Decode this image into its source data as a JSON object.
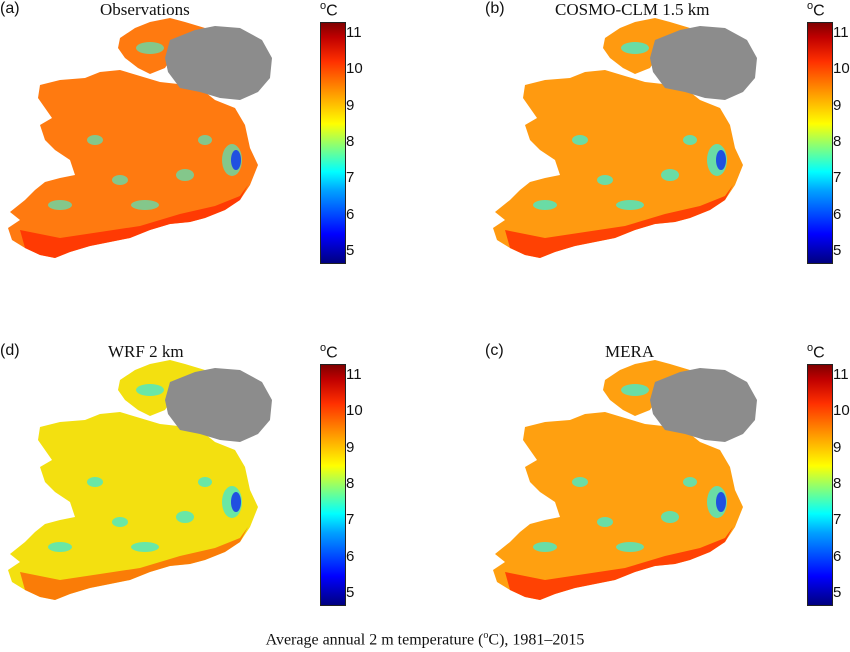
{
  "panels": [
    {
      "letter": "(a)",
      "title": "Observations",
      "scheme": "obs"
    },
    {
      "letter": "(b)",
      "title": "COSMO-CLM 1.5 km",
      "scheme": "cosmo"
    },
    {
      "letter": "(d)",
      "title": "WRF 2 km",
      "scheme": "wrf"
    },
    {
      "letter": "(c)",
      "title": "MERA",
      "scheme": "mera"
    }
  ],
  "colorbar": {
    "unit_base": "C",
    "unit_sup": "o",
    "ticks": [
      11,
      10,
      9,
      8,
      7,
      6,
      5
    ],
    "min": 4.7,
    "max": 11.3
  },
  "caption": {
    "before": "Average annual 2 m temperature (",
    "sup": "o",
    "after": "C), 1981–2015"
  },
  "colors": {
    "northern_ireland": "#8c8c8c",
    "obs_main": "#ff7a10",
    "cosmo_main": "#ff9a10",
    "wrf_main": "#f3e010",
    "mera_main": "#ffa010",
    "coast_warm": "#ff2a00",
    "highland": "#50e8c0",
    "mountain_blue": "#2050e0"
  }
}
